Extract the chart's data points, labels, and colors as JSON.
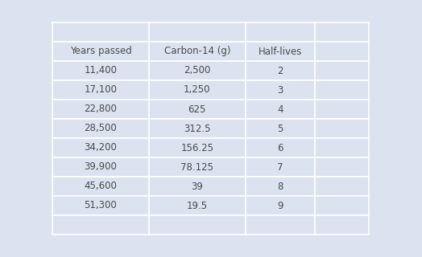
{
  "headers": [
    "Years passed",
    "Carbon-14 (g)",
    "Half-lives"
  ],
  "rows": [
    [
      "11,400",
      "2,500",
      "2"
    ],
    [
      "17,100",
      "1,250",
      "3"
    ],
    [
      "22,800",
      "625",
      "4"
    ],
    [
      "28,500",
      "312.5",
      "5"
    ],
    [
      "34,200",
      "156.25",
      "6"
    ],
    [
      "39,900",
      "78.125",
      "7"
    ],
    [
      "45,600",
      "39",
      "8"
    ],
    [
      "51,300",
      "19.5",
      "9"
    ]
  ],
  "background_color": "#dce3f0",
  "cell_bg_color": "#dce3f0",
  "grid_color": "#ffffff",
  "text_color": "#4a4a4a",
  "header_fontsize": 8.5,
  "cell_fontsize": 8.5,
  "fig_width": 5.24,
  "fig_height": 3.2
}
